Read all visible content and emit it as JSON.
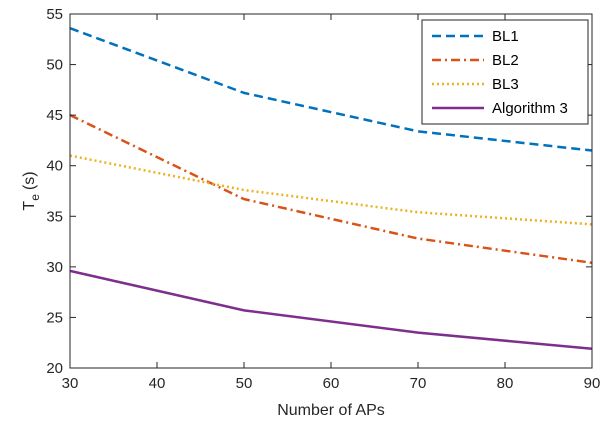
{
  "chart_data": {
    "type": "line",
    "title": "",
    "xlabel": "Number of APs",
    "ylabel_main": "T",
    "ylabel_sub": "e",
    "ylabel_unit": "(s)",
    "xlim": [
      30,
      90
    ],
    "ylim": [
      20,
      55
    ],
    "xticks": [
      30,
      40,
      50,
      60,
      70,
      80,
      90
    ],
    "yticks": [
      20,
      25,
      30,
      35,
      40,
      45,
      50,
      55
    ],
    "grid": false,
    "legend_position": "top-right",
    "x": [
      30,
      50,
      70,
      90
    ],
    "series": [
      {
        "name": "BL1",
        "values": [
          53.6,
          47.2,
          43.4,
          41.5
        ],
        "color": "#0072BD",
        "style": "dashed"
      },
      {
        "name": "BL2",
        "values": [
          45.0,
          36.7,
          32.8,
          30.4
        ],
        "color": "#D95319",
        "style": "dashdot"
      },
      {
        "name": "BL3",
        "values": [
          41.0,
          37.6,
          35.4,
          34.2
        ],
        "color": "#EDB120",
        "style": "dotted"
      },
      {
        "name": "Algorithm 3",
        "values": [
          29.6,
          25.7,
          23.5,
          21.9
        ],
        "color": "#7E2F8E",
        "style": "solid"
      }
    ]
  }
}
